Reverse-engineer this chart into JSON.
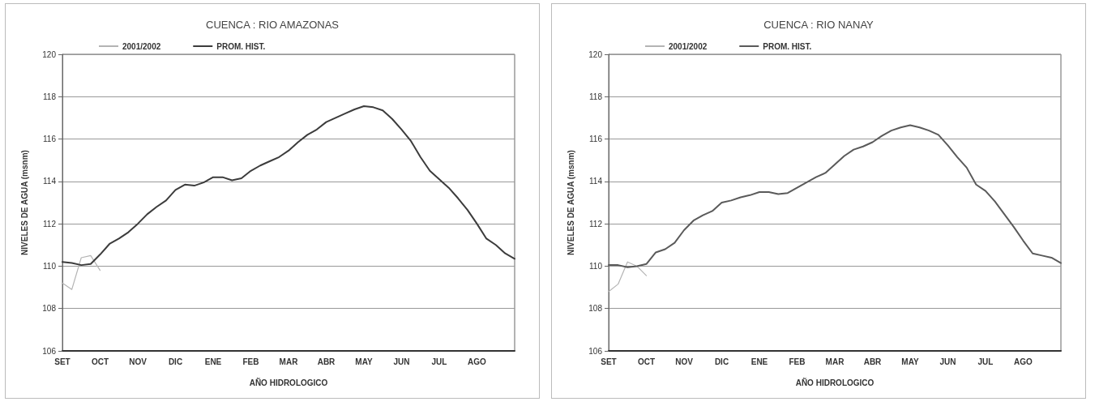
{
  "chart_data": [
    {
      "type": "line",
      "title": "CUENCA : RIO AMAZONAS",
      "xlabel": "AÑO HIDROLOGICO",
      "ylabel": "NIVELES DE AGUA (msnm)",
      "categories": [
        "SET",
        null,
        null,
        null,
        "OCT",
        null,
        null,
        null,
        "NOV",
        null,
        null,
        null,
        "DIC",
        null,
        null,
        null,
        "ENE",
        null,
        null,
        null,
        "FEB",
        null,
        null,
        null,
        "MAR",
        null,
        null,
        null,
        "ABR",
        null,
        null,
        null,
        "MAY",
        null,
        null,
        null,
        "JUN",
        null,
        null,
        null,
        "JUL",
        null,
        null,
        null,
        "AGO",
        null,
        null,
        null,
        null
      ],
      "ylim": [
        106,
        120
      ],
      "yticks": [
        106,
        108,
        110,
        112,
        114,
        116,
        118,
        120
      ],
      "grid": "y",
      "legend": "top left",
      "marker": "none",
      "line_style": "solid",
      "series": [
        {
          "name": "2001/2002",
          "color": "#b4b4b4",
          "values": [
            109.2,
            108.9,
            110.4,
            110.5,
            109.8,
            null,
            null,
            null,
            null,
            null,
            null,
            null,
            null,
            null,
            null,
            null,
            null,
            null,
            null,
            null,
            null,
            null,
            null,
            null,
            null,
            null,
            null,
            null,
            null,
            null,
            null,
            null,
            null,
            null,
            null,
            null,
            null,
            null,
            null,
            null,
            null,
            null,
            null,
            null,
            null,
            null,
            null,
            null,
            null
          ]
        },
        {
          "name": "PROM. HIST.",
          "color": "#3c3c3c",
          "values": [
            110.2,
            110.15,
            110.05,
            110.1,
            110.55,
            111.05,
            111.3,
            111.6,
            112.0,
            112.45,
            112.8,
            113.1,
            113.6,
            113.85,
            113.8,
            113.95,
            114.2,
            114.2,
            114.05,
            114.15,
            114.5,
            114.75,
            114.95,
            115.15,
            115.45,
            115.85,
            116.2,
            116.45,
            116.8,
            117.0,
            117.2,
            117.4,
            117.55,
            117.5,
            117.35,
            116.95,
            116.45,
            115.9,
            115.15,
            114.5,
            114.1,
            113.7,
            113.2,
            112.65,
            112.0,
            111.3,
            111.0,
            110.6,
            110.35
          ]
        }
      ]
    },
    {
      "type": "line",
      "title": "CUENCA : RIO NANAY",
      "xlabel": "AÑO HIDROLOGICO",
      "ylabel": "NIVELES DE AGUA (msnm)",
      "categories": [
        "SET",
        null,
        null,
        null,
        "OCT",
        null,
        null,
        null,
        "NOV",
        null,
        null,
        null,
        "DIC",
        null,
        null,
        null,
        "ENE",
        null,
        null,
        null,
        "FEB",
        null,
        null,
        null,
        "MAR",
        null,
        null,
        null,
        "ABR",
        null,
        null,
        null,
        "MAY",
        null,
        null,
        null,
        "JUN",
        null,
        null,
        null,
        "JUL",
        null,
        null,
        null,
        "AGO",
        null,
        null,
        null,
        null
      ],
      "ylim": [
        106,
        120
      ],
      "yticks": [
        106,
        108,
        110,
        112,
        114,
        116,
        118,
        120
      ],
      "grid": "y",
      "legend": "top left",
      "marker": "none",
      "line_style": "solid",
      "series": [
        {
          "name": "2001/2002",
          "color": "#b4b4b4",
          "values": [
            108.8,
            109.15,
            110.2,
            110.0,
            109.55,
            null,
            null,
            null,
            null,
            null,
            null,
            null,
            null,
            null,
            null,
            null,
            null,
            null,
            null,
            null,
            null,
            null,
            null,
            null,
            null,
            null,
            null,
            null,
            null,
            null,
            null,
            null,
            null,
            null,
            null,
            null,
            null,
            null,
            null,
            null,
            null,
            null,
            null,
            null,
            null,
            null,
            null,
            null,
            null
          ]
        },
        {
          "name": "PROM. HIST.",
          "color": "#5a5a5a",
          "values": [
            110.05,
            110.05,
            109.95,
            110.0,
            110.1,
            110.65,
            110.8,
            111.1,
            111.7,
            112.15,
            112.4,
            112.6,
            113.0,
            113.1,
            113.25,
            113.35,
            113.5,
            113.5,
            113.4,
            113.45,
            113.7,
            113.95,
            114.2,
            114.4,
            114.8,
            115.2,
            115.5,
            115.65,
            115.85,
            116.15,
            116.4,
            116.55,
            116.65,
            116.55,
            116.4,
            116.2,
            115.7,
            115.15,
            114.65,
            113.85,
            113.55,
            113.05,
            112.45,
            111.85,
            111.2,
            110.6,
            110.5,
            110.4,
            110.15
          ]
        }
      ]
    }
  ]
}
